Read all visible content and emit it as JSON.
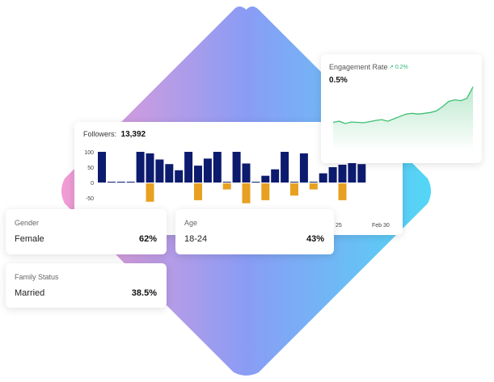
{
  "followers_card": {
    "label": "Followers:",
    "value": "13,392",
    "x_ticks": [
      "25",
      "Feb 30"
    ]
  },
  "engagement_card": {
    "title": "Engagement Rate",
    "delta": "0.2%",
    "value": "0.5%"
  },
  "gender_card": {
    "label": "Gender",
    "name": "Female",
    "percent": "62%"
  },
  "age_card": {
    "label": "Age",
    "name": "18-24",
    "percent": "43%"
  },
  "family_card": {
    "label": "Family Status",
    "name": "Married",
    "percent": "38.5%"
  },
  "colors": {
    "positive_bar": "#0d1b6e",
    "negative_bar": "#e8a021",
    "trend_line": "#3fbf72",
    "diamond_gradient": [
      "#f39bd3",
      "#8a9cf5",
      "#52d7f5"
    ]
  },
  "chart_data": [
    {
      "type": "bar",
      "title": "",
      "y_ticks": [
        100,
        50,
        0,
        -50
      ],
      "ylim": [
        -65,
        115
      ],
      "series": [
        {
          "values": [
            100,
            0,
            0,
            0,
            100,
            95,
            75,
            60,
            40,
            100,
            55,
            78,
            100,
            0,
            100,
            62,
            0,
            22,
            43,
            100,
            0,
            95,
            0,
            30,
            50,
            58,
            100,
            60
          ]
        },
        {
          "values": [
            0,
            0,
            0,
            0,
            0,
            -60,
            0,
            0,
            0,
            0,
            -55,
            0,
            0,
            -20,
            0,
            -65,
            0,
            -55,
            0,
            0,
            -40,
            0,
            -20,
            0,
            0,
            -55,
            0,
            0
          ]
        }
      ]
    },
    {
      "type": "line",
      "title": "",
      "values": [
        0.05,
        0.08,
        0.02,
        0.06,
        0.05,
        0.04,
        0.07,
        0.1,
        0.12,
        0.08,
        0.14,
        0.2,
        0.26,
        0.28,
        0.26,
        0.28,
        0.3,
        0.34,
        0.45,
        0.58,
        0.62,
        0.6,
        0.66,
        0.95
      ]
    }
  ]
}
